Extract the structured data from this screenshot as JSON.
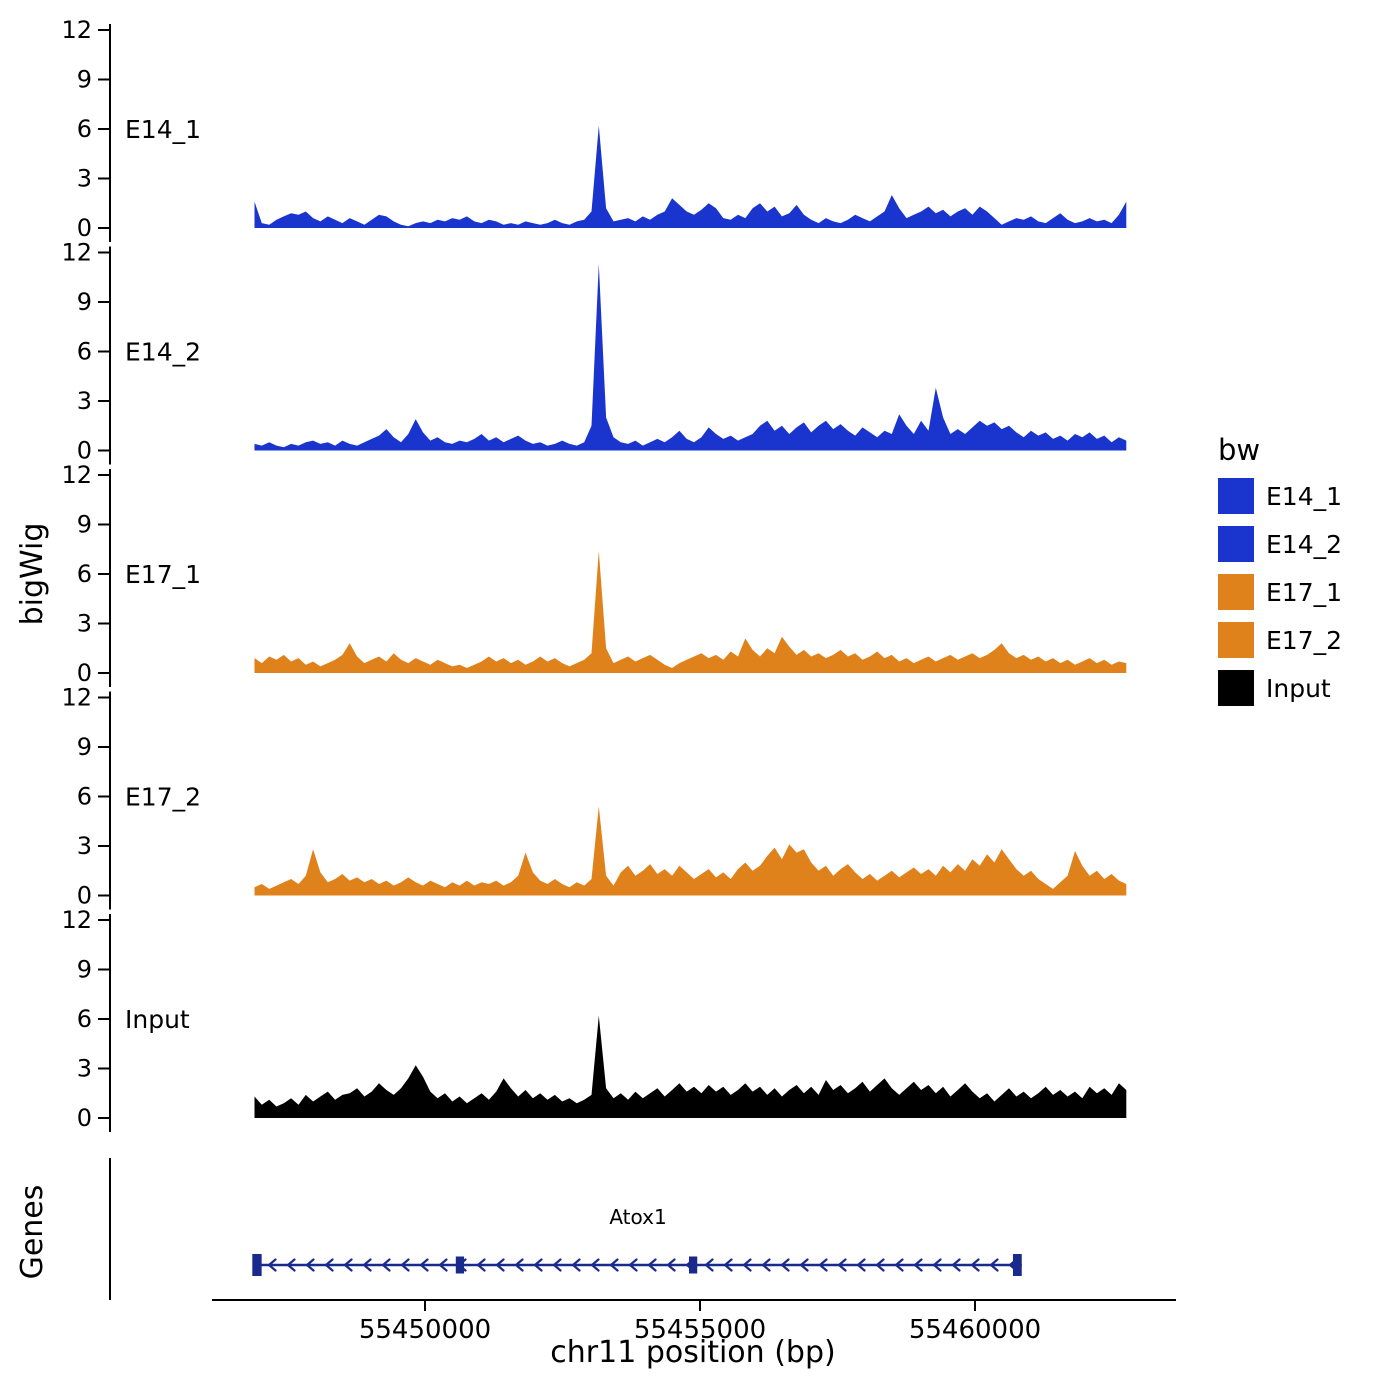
{
  "figure": {
    "background": "#ffffff",
    "y_axis_title": "bigWig",
    "genes_axis_title": "Genes",
    "x_axis_title": "chr11 position (bp)",
    "legend": {
      "title": "bw",
      "items": [
        {
          "label": "E14_1",
          "color": "#1A35CE"
        },
        {
          "label": "E14_2",
          "color": "#1A35CE"
        },
        {
          "label": "E17_1",
          "color": "#E0821C"
        },
        {
          "label": "E17_2",
          "color": "#E0821C"
        },
        {
          "label": "Input",
          "color": "#000000"
        }
      ]
    }
  },
  "chart_data": {
    "type": "area",
    "title": "",
    "xlabel": "chr11 position (bp)",
    "ylabel": "bigWig",
    "ylim": [
      0,
      12
    ],
    "y_ticks": [
      0,
      3,
      6,
      9,
      12
    ],
    "x_range_bp": [
      55446900,
      55462750
    ],
    "x_ticks": [
      {
        "value": 55450000,
        "label": "55450000"
      },
      {
        "value": 55455000,
        "label": "55455000"
      },
      {
        "value": 55460000,
        "label": "55460000"
      }
    ],
    "tracks": [
      {
        "name": "E14_1",
        "color": "#1A35CE",
        "values": [
          1.6,
          0.3,
          0.2,
          0.5,
          0.7,
          0.9,
          0.8,
          1.0,
          0.6,
          0.4,
          0.7,
          0.5,
          0.3,
          0.6,
          0.4,
          0.2,
          0.5,
          0.8,
          0.7,
          0.4,
          0.2,
          0.1,
          0.3,
          0.4,
          0.3,
          0.5,
          0.4,
          0.6,
          0.5,
          0.7,
          0.4,
          0.3,
          0.5,
          0.4,
          0.2,
          0.3,
          0.2,
          0.4,
          0.3,
          0.2,
          0.3,
          0.5,
          0.3,
          0.2,
          0.4,
          0.5,
          1.0,
          6.2,
          1.2,
          0.4,
          0.5,
          0.6,
          0.4,
          0.7,
          0.5,
          0.8,
          1.0,
          1.8,
          1.4,
          1.0,
          0.8,
          1.1,
          1.5,
          1.2,
          0.6,
          0.5,
          0.8,
          0.6,
          1.2,
          1.5,
          1.0,
          1.3,
          0.7,
          0.9,
          1.4,
          0.8,
          0.5,
          0.3,
          0.6,
          0.4,
          0.3,
          0.5,
          0.8,
          0.6,
          0.4,
          0.7,
          1.0,
          2.0,
          1.2,
          0.6,
          0.8,
          1.0,
          1.3,
          0.9,
          1.1,
          0.7,
          1.0,
          1.2,
          0.8,
          1.3,
          1.0,
          0.6,
          0.2,
          0.4,
          0.6,
          0.5,
          0.7,
          0.4,
          0.3,
          0.6,
          0.9,
          0.5,
          0.3,
          0.4,
          0.6,
          0.4,
          0.5,
          0.3,
          0.8,
          1.6
        ]
      },
      {
        "name": "E14_2",
        "color": "#1A35CE",
        "values": [
          0.4,
          0.3,
          0.5,
          0.3,
          0.2,
          0.4,
          0.3,
          0.5,
          0.6,
          0.4,
          0.5,
          0.3,
          0.6,
          0.4,
          0.3,
          0.5,
          0.7,
          0.9,
          1.3,
          0.8,
          0.5,
          1.0,
          1.9,
          1.1,
          0.6,
          0.8,
          0.5,
          0.4,
          0.6,
          0.5,
          0.7,
          1.0,
          0.6,
          0.8,
          0.5,
          0.7,
          0.9,
          0.6,
          0.4,
          0.5,
          0.3,
          0.4,
          0.6,
          0.4,
          0.3,
          0.5,
          1.5,
          11.3,
          2.0,
          0.8,
          0.5,
          0.4,
          0.6,
          0.3,
          0.5,
          0.7,
          0.5,
          0.8,
          1.2,
          0.7,
          0.5,
          0.8,
          1.4,
          1.0,
          0.7,
          0.9,
          0.6,
          0.8,
          1.0,
          1.5,
          1.8,
          1.2,
          1.5,
          1.0,
          1.4,
          1.7,
          1.1,
          1.5,
          1.8,
          1.3,
          1.6,
          1.2,
          0.9,
          1.4,
          1.1,
          0.8,
          1.2,
          1.0,
          2.2,
          1.5,
          1.0,
          1.8,
          1.2,
          3.8,
          2.0,
          1.0,
          1.3,
          1.0,
          1.4,
          1.8,
          1.5,
          1.7,
          1.3,
          1.5,
          1.1,
          0.8,
          1.2,
          0.9,
          1.1,
          0.7,
          0.9,
          0.6,
          1.0,
          0.8,
          1.1,
          0.7,
          0.9,
          0.5,
          0.8,
          0.6
        ]
      },
      {
        "name": "E17_1",
        "color": "#E0821C",
        "values": [
          0.9,
          0.6,
          1.0,
          0.8,
          1.1,
          0.7,
          0.9,
          0.5,
          0.7,
          0.4,
          0.6,
          0.8,
          1.1,
          1.8,
          1.0,
          0.6,
          0.8,
          1.0,
          0.7,
          1.2,
          0.8,
          0.6,
          0.9,
          0.7,
          0.5,
          0.8,
          0.6,
          0.4,
          0.5,
          0.3,
          0.5,
          0.7,
          1.0,
          0.7,
          0.9,
          0.6,
          0.8,
          0.5,
          0.7,
          1.0,
          0.7,
          0.9,
          0.6,
          0.4,
          0.6,
          0.8,
          1.2,
          7.4,
          1.5,
          0.6,
          0.8,
          1.0,
          0.7,
          0.9,
          1.1,
          0.8,
          0.5,
          0.3,
          0.6,
          0.8,
          1.0,
          1.2,
          0.9,
          1.1,
          0.8,
          1.3,
          1.0,
          2.1,
          1.4,
          1.0,
          1.5,
          1.2,
          2.2,
          1.6,
          1.1,
          1.4,
          1.0,
          1.2,
          0.9,
          1.1,
          1.4,
          1.0,
          1.2,
          0.8,
          1.0,
          1.3,
          0.9,
          1.1,
          0.7,
          0.9,
          0.6,
          0.8,
          1.0,
          0.7,
          0.9,
          1.1,
          0.8,
          1.0,
          1.2,
          0.9,
          1.1,
          1.4,
          1.8,
          1.2,
          0.9,
          1.1,
          0.8,
          1.0,
          0.7,
          0.9,
          0.6,
          0.8,
          0.5,
          0.7,
          0.9,
          0.6,
          0.8,
          0.5,
          0.7,
          0.6
        ]
      },
      {
        "name": "E17_2",
        "color": "#E0821C",
        "values": [
          0.5,
          0.7,
          0.4,
          0.6,
          0.8,
          1.0,
          0.7,
          1.2,
          2.8,
          1.4,
          0.8,
          1.0,
          1.3,
          0.9,
          1.1,
          0.8,
          1.0,
          0.7,
          0.9,
          0.6,
          0.8,
          1.1,
          0.8,
          0.6,
          0.9,
          0.7,
          0.5,
          0.8,
          0.6,
          0.9,
          0.6,
          0.8,
          0.7,
          0.9,
          0.6,
          0.8,
          1.2,
          2.6,
          1.4,
          0.9,
          0.7,
          1.0,
          0.7,
          0.5,
          0.8,
          0.6,
          1.0,
          5.4,
          1.2,
          0.6,
          1.4,
          1.8,
          1.2,
          1.5,
          1.9,
          1.3,
          1.6,
          1.2,
          1.8,
          1.4,
          1.0,
          1.3,
          1.6,
          1.1,
          1.4,
          1.0,
          1.6,
          2.0,
          1.5,
          1.8,
          2.4,
          2.9,
          2.2,
          3.1,
          2.6,
          2.8,
          2.0,
          1.5,
          1.8,
          1.2,
          1.6,
          1.9,
          1.4,
          1.0,
          1.3,
          0.9,
          1.2,
          1.5,
          1.1,
          1.4,
          1.7,
          1.3,
          1.6,
          1.2,
          1.8,
          1.4,
          1.9,
          1.5,
          2.2,
          1.8,
          2.5,
          2.0,
          2.8,
          2.2,
          1.6,
          1.2,
          1.5,
          1.0,
          0.7,
          0.4,
          0.8,
          1.2,
          2.7,
          1.8,
          1.2,
          1.5,
          1.0,
          1.3,
          0.9,
          0.7
        ]
      },
      {
        "name": "Input",
        "color": "#000000",
        "values": [
          1.3,
          0.8,
          1.1,
          0.7,
          0.9,
          1.2,
          0.8,
          1.4,
          1.0,
          1.3,
          1.6,
          1.1,
          1.4,
          1.5,
          1.8,
          1.3,
          1.6,
          2.1,
          1.7,
          1.4,
          1.8,
          2.4,
          3.2,
          2.5,
          1.6,
          1.2,
          1.5,
          1.0,
          1.3,
          0.9,
          1.2,
          1.5,
          1.1,
          1.6,
          2.4,
          1.8,
          1.3,
          1.7,
          1.2,
          1.5,
          1.1,
          1.4,
          1.0,
          1.2,
          0.9,
          1.1,
          1.4,
          6.2,
          1.8,
          1.2,
          1.5,
          1.1,
          1.6,
          1.2,
          1.5,
          1.8,
          1.3,
          1.7,
          2.1,
          1.6,
          1.9,
          1.5,
          2.0,
          1.6,
          1.9,
          1.4,
          1.7,
          2.1,
          1.6,
          1.9,
          1.4,
          1.8,
          1.3,
          1.7,
          2.0,
          1.5,
          1.9,
          1.4,
          2.3,
          1.7,
          2.0,
          1.5,
          1.8,
          2.2,
          1.6,
          2.0,
          2.4,
          1.8,
          1.4,
          1.8,
          2.2,
          1.7,
          2.0,
          1.5,
          1.9,
          1.3,
          1.7,
          2.1,
          1.6,
          1.2,
          1.5,
          1.0,
          1.4,
          1.8,
          1.3,
          1.6,
          1.2,
          1.5,
          1.9,
          1.4,
          1.7,
          1.3,
          1.6,
          1.2,
          1.9,
          1.5,
          1.8,
          1.4,
          2.1,
          1.7
        ]
      }
    ],
    "gene_track": {
      "gene": "Atox1",
      "strand": "-",
      "color": "#1A2A8C",
      "line_start_bp": 55446900,
      "line_end_bp": 55460850,
      "exons_bp": [
        [
          55446860,
          55447030
        ],
        [
          55450560,
          55450710
        ],
        [
          55454800,
          55454950
        ],
        [
          55460690,
          55460850
        ]
      ]
    }
  }
}
